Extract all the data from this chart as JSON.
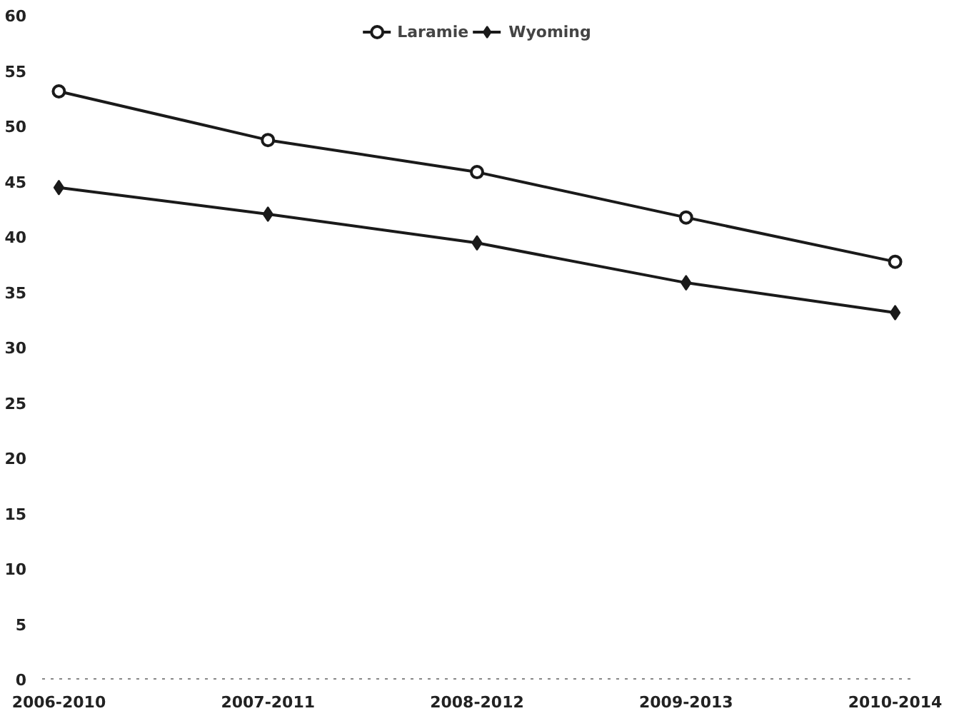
{
  "chart_data": {
    "type": "line",
    "categories": [
      "2006-2010",
      "2007-2011",
      "2008-2012",
      "2009-2013",
      "2010-2014"
    ],
    "series": [
      {
        "name": "Laramie",
        "color": "#1a1a1a",
        "marker": "circle",
        "values": [
          53.1,
          48.7,
          45.8,
          41.7,
          37.7
        ]
      },
      {
        "name": "Wyoming",
        "color": "#1a1a1a",
        "marker": "diamond",
        "values": [
          44.4,
          42.0,
          39.4,
          35.8,
          33.1
        ]
      }
    ],
    "ylim": [
      0,
      60
    ],
    "yticks": [
      0,
      5,
      10,
      15,
      20,
      25,
      30,
      35,
      40,
      45,
      50,
      55,
      60
    ],
    "grid": false,
    "legend": "top",
    "line_style": "solid"
  }
}
